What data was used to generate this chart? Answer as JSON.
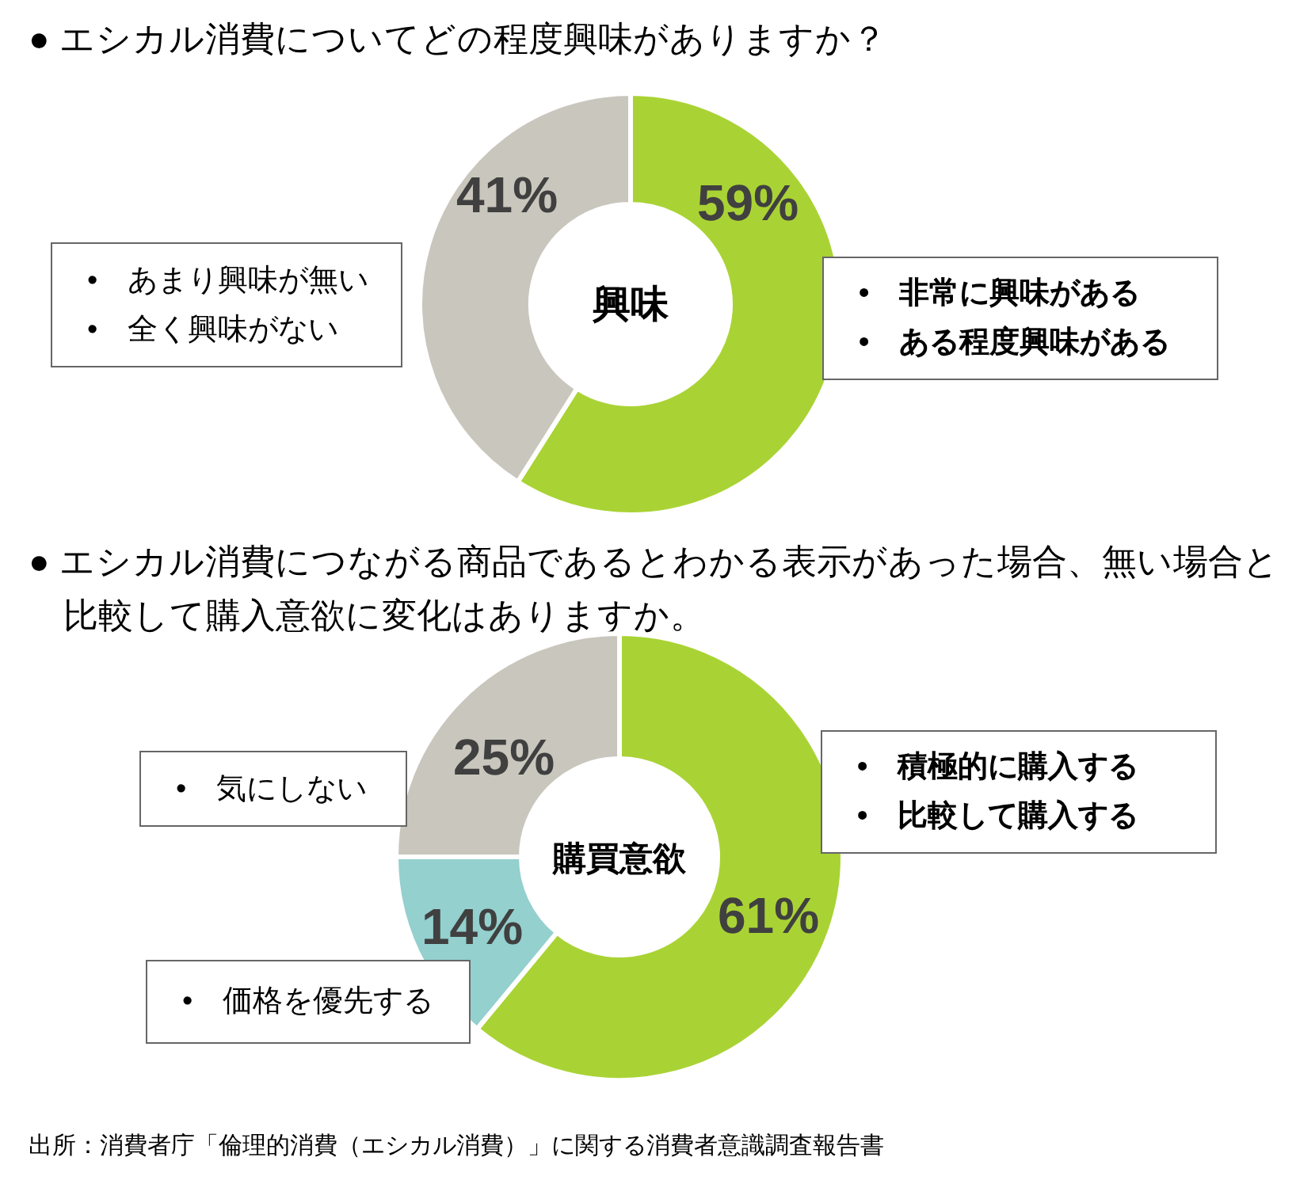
{
  "chart_data": [
    {
      "type": "donut",
      "title": "● エシカル消費についてどの程度興味がありますか？",
      "categories": [
        null,
        null
      ],
      "values": [
        59,
        41
      ],
      "value_labels": [
        "59%",
        "41%"
      ],
      "colors": [
        "#a9d334",
        "#c9c6bd"
      ],
      "annotations": [
        "興味",
        "•　非常に興味がある",
        "•　ある程度興味がある",
        "•　あまり興味が無い",
        "•　全く興味がない"
      ]
    },
    {
      "type": "donut",
      "title": "● エシカル消費につながる商品であるとわかる表示があった場合、無い場合と比較して購入意欲に変化はありますか。",
      "categories": [
        null,
        null,
        null
      ],
      "values": [
        61,
        14,
        25
      ],
      "value_labels": [
        "61%",
        "14%",
        "25%"
      ],
      "colors": [
        "#a9d334",
        "#93d0ce",
        "#c9c6bd"
      ],
      "annotations": [
        "購買意欲",
        "•　積極的に購入する",
        "•　比較して購入する",
        "•　価格を優先する",
        "•　気にしない",
        "出所：消費者庁「倫理的消費（エシカル消費）」に関する消費者意識調査報告書"
      ]
    }
  ]
}
